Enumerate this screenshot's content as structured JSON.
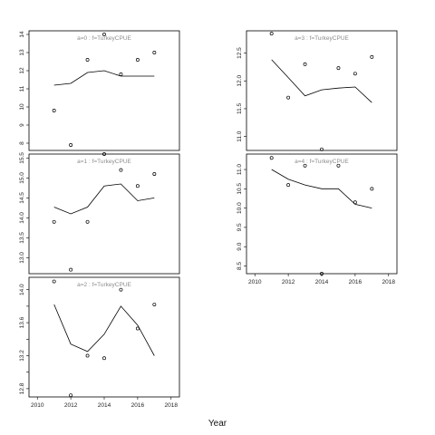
{
  "chart_data": {
    "type": "scatter",
    "xlabel": "Year",
    "panels": [
      {
        "title": "a=0  :  f=TurkeyCPUE",
        "xlim": [
          2009.5,
          2018.5
        ],
        "ylim": [
          7.6,
          14.2
        ],
        "yticks": [
          8,
          9,
          10,
          11,
          12,
          13,
          14
        ],
        "yticklabels": [
          "8",
          "9",
          "10",
          "11",
          "12",
          "13",
          "14"
        ],
        "xticks": [],
        "xticklabels": [],
        "observed": {
          "x": [
            2011,
            2012,
            2013,
            2014,
            2015,
            2016,
            2017
          ],
          "y": [
            9.8,
            7.9,
            12.6,
            14.0,
            11.8,
            12.6,
            13.0
          ]
        },
        "fitted": {
          "x": [
            2011,
            2012,
            2013,
            2014,
            2015,
            2016,
            2017
          ],
          "y": [
            11.2,
            11.3,
            11.9,
            12.0,
            11.7,
            11.7,
            11.7
          ]
        }
      },
      {
        "title": "a=1  :  f=TurkeyCPUE",
        "xlim": [
          2009.5,
          2018.5
        ],
        "ylim": [
          12.6,
          15.6
        ],
        "yticks": [
          13.0,
          13.5,
          14.0,
          14.5,
          15.0,
          15.5
        ],
        "yticklabels": [
          "13.0",
          "13.5",
          "14.0",
          "14.5",
          "15.0",
          "15.5"
        ],
        "xticks": [],
        "xticklabels": [],
        "observed": {
          "x": [
            2011,
            2012,
            2013,
            2014,
            2015,
            2016,
            2017
          ],
          "y": [
            13.9,
            12.7,
            13.9,
            15.6,
            15.2,
            14.8,
            15.1
          ]
        },
        "fitted": {
          "x": [
            2011,
            2012,
            2013,
            2014,
            2015,
            2016,
            2017
          ],
          "y": [
            14.27,
            14.1,
            14.27,
            14.8,
            14.85,
            14.43,
            14.5
          ]
        }
      },
      {
        "title": "a=2  :  f=TurkeyCPUE",
        "xlim": [
          2009.5,
          2018.5
        ],
        "ylim": [
          12.7,
          14.15
        ],
        "yticks": [
          12.8,
          13.0,
          13.2,
          13.4,
          13.6,
          13.8,
          14.0
        ],
        "yticklabels": [
          "12.8",
          "",
          "13.2",
          "",
          "13.6",
          "",
          "14.0"
        ],
        "xticks": [
          2010,
          2012,
          2014,
          2016,
          2018
        ],
        "xticklabels": [
          "2010",
          "2012",
          "2014",
          "2016",
          "2018"
        ],
        "observed": {
          "x": [
            2011,
            2012,
            2013,
            2014,
            2015,
            2016,
            2017
          ],
          "y": [
            14.1,
            12.72,
            13.2,
            13.17,
            14.0,
            13.53,
            13.82
          ]
        },
        "fitted": {
          "x": [
            2011,
            2012,
            2013,
            2014,
            2015,
            2016,
            2017
          ],
          "y": [
            13.82,
            13.34,
            13.25,
            13.46,
            13.8,
            13.57,
            13.2
          ]
        }
      },
      {
        "title": "a=3  :  f=TurkeyCPUE",
        "xlim": [
          2009.5,
          2018.5
        ],
        "ylim": [
          10.75,
          12.9
        ],
        "yticks": [
          11.0,
          11.5,
          12.0,
          12.5
        ],
        "yticklabels": [
          "11.0",
          "11.5",
          "12.0",
          "12.5"
        ],
        "xticks": [],
        "xticklabels": [],
        "observed": {
          "x": [
            2011,
            2012,
            2013,
            2014,
            2015,
            2016,
            2017
          ],
          "y": [
            12.85,
            11.7,
            12.3,
            10.77,
            12.23,
            12.13,
            12.43
          ]
        },
        "fitted": {
          "x": [
            2011,
            2012,
            2013,
            2014,
            2015,
            2016,
            2017
          ],
          "y": [
            12.38,
            12.06,
            11.73,
            11.84,
            11.87,
            11.89,
            11.61
          ]
        }
      },
      {
        "title": "a=4  :  f=TurkeyCPUE",
        "xlim": [
          2009.5,
          2018.5
        ],
        "ylim": [
          8.3,
          11.4
        ],
        "yticks": [
          8.5,
          9.0,
          9.5,
          10.0,
          10.5,
          11.0
        ],
        "yticklabels": [
          "8.5",
          "9.0",
          "9.5",
          "10.0",
          "10.5",
          "11.0"
        ],
        "xticks": [
          2010,
          2012,
          2014,
          2016,
          2018
        ],
        "xticklabels": [
          "2010",
          "2012",
          "2014",
          "2016",
          "2018"
        ],
        "observed": {
          "x": [
            2011,
            2012,
            2013,
            2014,
            2015,
            2016,
            2017
          ],
          "y": [
            11.3,
            10.6,
            11.1,
            8.3,
            11.1,
            10.15,
            10.5
          ]
        },
        "fitted": {
          "x": [
            2011,
            2012,
            2013,
            2014,
            2015,
            2016,
            2017
          ],
          "y": [
            11.0,
            10.75,
            10.6,
            10.5,
            10.5,
            10.1,
            10.0
          ]
        }
      }
    ]
  }
}
